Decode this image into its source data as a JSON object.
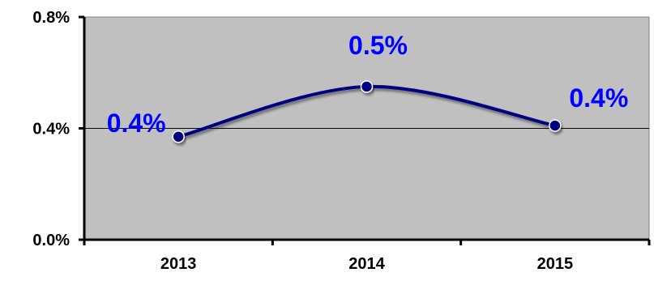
{
  "chart_data": {
    "type": "line",
    "categories": [
      "2013",
      "2014",
      "2015"
    ],
    "series": [
      {
        "values": [
          0.37,
          0.55,
          0.41
        ]
      }
    ],
    "data_labels": [
      "0.4%",
      "0.5%",
      "0.4%"
    ],
    "y_ticks": [
      {
        "value": 0.0,
        "label": "0.0%"
      },
      {
        "value": 0.4,
        "label": "0.4%"
      },
      {
        "value": 0.8,
        "label": "0.8%"
      }
    ],
    "ylim": [
      0,
      0.8
    ],
    "y_unit": "%",
    "smooth": true,
    "grid": "horizontal gridline at 0.4%",
    "colors": {
      "plot_background": "#c0c0c0",
      "line": "#000080",
      "marker": "#000080",
      "data_label": "#0000ff",
      "gridline": "#000000",
      "axis": "#000000"
    }
  }
}
